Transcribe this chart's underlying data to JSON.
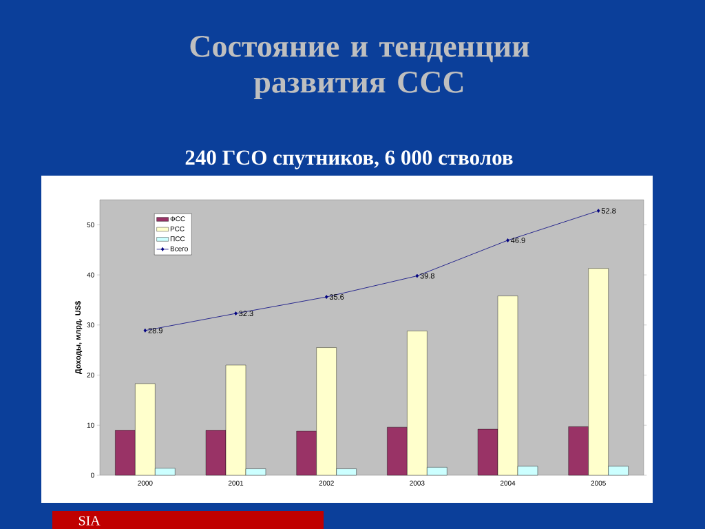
{
  "chart_data": {
    "type": "bar",
    "title": "Состояние и тенденции развития ССС",
    "subtitle": "240 ГСО спутников, 6 000 стволов",
    "ylabel": "Доходы, млрд. US$",
    "categories": [
      "2000",
      "2001",
      "2002",
      "2003",
      "2004",
      "2005"
    ],
    "series": [
      {
        "name": "ФСС",
        "color": "#993366",
        "values": [
          9.0,
          9.0,
          8.8,
          9.6,
          9.2,
          9.7
        ]
      },
      {
        "name": "РСС",
        "color": "#ffffcc",
        "values": [
          18.3,
          22.0,
          25.5,
          28.8,
          35.8,
          41.3
        ]
      },
      {
        "name": "ПСС",
        "color": "#ccffff",
        "values": [
          1.4,
          1.3,
          1.3,
          1.6,
          1.8,
          1.8
        ]
      },
      {
        "name": "Всего",
        "type": "line",
        "color": "#000080",
        "marker": "diamond",
        "values": [
          28.9,
          32.3,
          35.6,
          39.8,
          46.9,
          52.8
        ],
        "value_labels": [
          "28.9",
          "32.3",
          "35.6",
          "39.8",
          "46.9",
          "52.8"
        ]
      }
    ],
    "ylim": [
      0,
      55
    ],
    "yticks": [
      0,
      10,
      20,
      30,
      40,
      50
    ],
    "legend": "top left",
    "annotations": [
      "SIA"
    ]
  }
}
